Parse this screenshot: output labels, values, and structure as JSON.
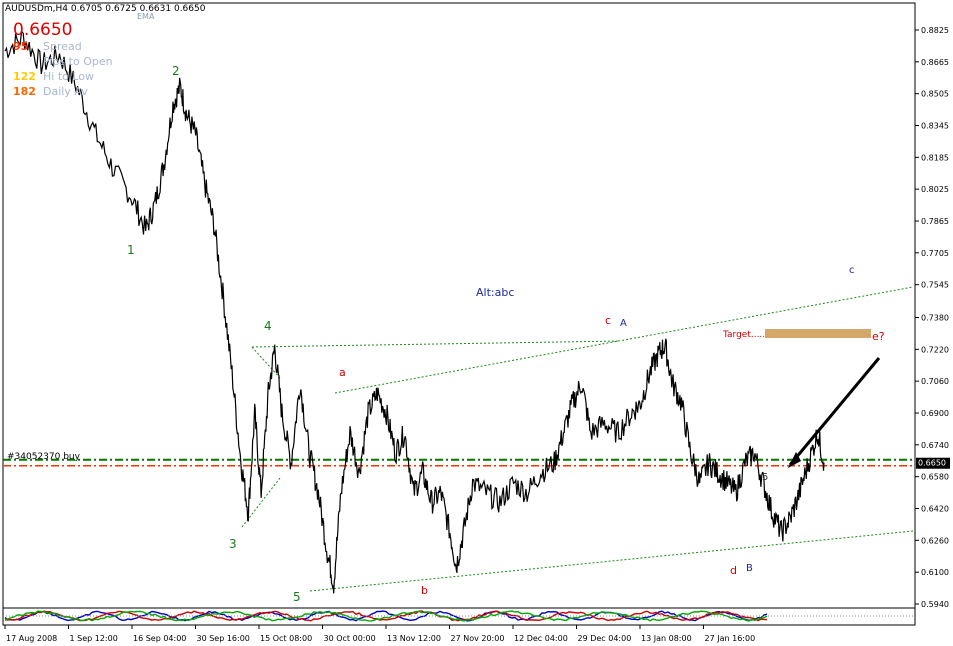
{
  "header": {
    "title": "AUDUSDm,H4",
    "ohlc": "0.6705 0.6725 0.6631 0.6650",
    "indicator_tag": "EMA"
  },
  "info_panel": {
    "price": "0.6650",
    "rows": [
      {
        "value": "95",
        "label": "Spread",
        "value_color": "#ff3300"
      },
      {
        "value": "",
        "label": "Pips to Open",
        "value_color": "#ff3300"
      },
      {
        "value": "122",
        "label": "Hi to Low",
        "value_color": "#ffcc00"
      },
      {
        "value": "182",
        "label": "Daily Av",
        "value_color": "#ff6600"
      }
    ],
    "label_color": "#a8b8d0"
  },
  "order_line_label": "#34052370 buy",
  "current_price_label": "0.6650",
  "annotations": {
    "alt": "Alt:abc",
    "target": "Target",
    "e": "e?",
    "wave_green": [
      "1",
      "2",
      "3",
      "4",
      "5"
    ],
    "wave_red": [
      "a",
      "b",
      "c",
      "d"
    ],
    "wave_blue": [
      "A",
      "B",
      "c"
    ],
    "small5": "5"
  },
  "chart_data": {
    "type": "candlestick",
    "symbol": "AUDUSDm",
    "timeframe": "H4",
    "y_ticks": [
      "0.8825",
      "0.8665",
      "0.8505",
      "0.8345",
      "0.8185",
      "0.8025",
      "0.7865",
      "0.7705",
      "0.7545",
      "0.7380",
      "0.7220",
      "0.7060",
      "0.6900",
      "0.6740",
      "0.6580",
      "0.6420",
      "0.6260",
      "0.6100",
      "0.5940"
    ],
    "ylim": [
      0.594,
      0.8825
    ],
    "x_ticks": [
      "17 Aug 2008",
      "1 Sep 12:00",
      "16 Sep 04:00",
      "30 Sep 16:00",
      "15 Oct 08:00",
      "30 Oct 00:00",
      "13 Nov 12:00",
      "27 Nov 20:00",
      "12 Dec 04:00",
      "29 Dec 04:00",
      "13 Jan 08:00",
      "27 Jan 16:00"
    ],
    "price_path": [
      [
        0,
        0.872
      ],
      [
        0.02,
        0.879
      ],
      [
        0.04,
        0.865
      ],
      [
        0.06,
        0.87
      ],
      [
        0.08,
        0.853
      ],
      [
        0.1,
        0.83
      ],
      [
        0.12,
        0.812
      ],
      [
        0.14,
        0.798
      ],
      [
        0.155,
        0.782
      ],
      [
        0.165,
        0.795
      ],
      [
        0.175,
        0.815
      ],
      [
        0.185,
        0.845
      ],
      [
        0.193,
        0.854
      ],
      [
        0.2,
        0.84
      ],
      [
        0.21,
        0.83
      ],
      [
        0.22,
        0.805
      ],
      [
        0.23,
        0.785
      ],
      [
        0.24,
        0.75
      ],
      [
        0.25,
        0.71
      ],
      [
        0.26,
        0.665
      ],
      [
        0.268,
        0.64
      ],
      [
        0.275,
        0.69
      ],
      [
        0.282,
        0.65
      ],
      [
        0.29,
        0.7
      ],
      [
        0.297,
        0.723
      ],
      [
        0.305,
        0.69
      ],
      [
        0.315,
        0.665
      ],
      [
        0.325,
        0.705
      ],
      [
        0.335,
        0.67
      ],
      [
        0.345,
        0.65
      ],
      [
        0.355,
        0.62
      ],
      [
        0.362,
        0.604
      ],
      [
        0.37,
        0.65
      ],
      [
        0.38,
        0.68
      ],
      [
        0.39,
        0.66
      ],
      [
        0.4,
        0.69
      ],
      [
        0.41,
        0.7
      ],
      [
        0.42,
        0.69
      ],
      [
        0.43,
        0.67
      ],
      [
        0.44,
        0.68
      ],
      [
        0.45,
        0.65
      ],
      [
        0.46,
        0.66
      ],
      [
        0.47,
        0.645
      ],
      [
        0.48,
        0.65
      ],
      [
        0.49,
        0.63
      ],
      [
        0.497,
        0.613
      ],
      [
        0.505,
        0.63
      ],
      [
        0.515,
        0.655
      ],
      [
        0.53,
        0.65
      ],
      [
        0.545,
        0.645
      ],
      [
        0.56,
        0.655
      ],
      [
        0.575,
        0.65
      ],
      [
        0.59,
        0.66
      ],
      [
        0.605,
        0.665
      ],
      [
        0.615,
        0.68
      ],
      [
        0.625,
        0.695
      ],
      [
        0.635,
        0.705
      ],
      [
        0.645,
        0.68
      ],
      [
        0.66,
        0.685
      ],
      [
        0.675,
        0.68
      ],
      [
        0.69,
        0.69
      ],
      [
        0.7,
        0.695
      ],
      [
        0.71,
        0.71
      ],
      [
        0.72,
        0.72
      ],
      [
        0.727,
        0.724
      ],
      [
        0.735,
        0.705
      ],
      [
        0.745,
        0.695
      ],
      [
        0.755,
        0.67
      ],
      [
        0.765,
        0.655
      ],
      [
        0.775,
        0.665
      ],
      [
        0.785,
        0.66
      ],
      [
        0.795,
        0.655
      ],
      [
        0.805,
        0.65
      ],
      [
        0.815,
        0.665
      ],
      [
        0.825,
        0.67
      ],
      [
        0.835,
        0.655
      ],
      [
        0.845,
        0.64
      ],
      [
        0.855,
        0.63
      ],
      [
        0.865,
        0.637
      ],
      [
        0.875,
        0.65
      ],
      [
        0.885,
        0.665
      ],
      [
        0.895,
        0.68
      ],
      [
        0.902,
        0.665
      ]
    ],
    "order_price": 0.665
  }
}
